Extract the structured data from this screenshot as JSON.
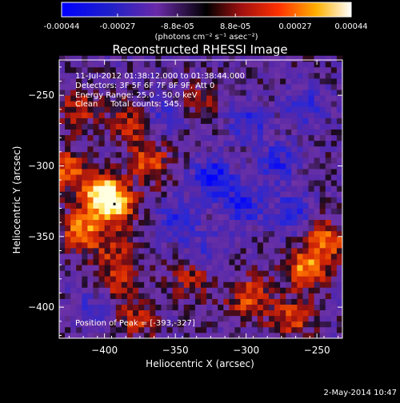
{
  "colorbar": {
    "tick_labels": [
      "-0.00044",
      "-0.00027",
      "-8.8e-05",
      "8.8e-05",
      "0.00027",
      "0.00044"
    ],
    "unit_label": "(photons cm⁻² s⁻¹ asec⁻²)"
  },
  "chart_data": {
    "type": "heatmap",
    "title": "Reconstructed RHESSI Image",
    "xlabel": "Heliocentric X (arcsec)",
    "ylabel": "Heliocentric Y (arcsec)",
    "xlim": [
      -432,
      -232
    ],
    "ylim": [
      -422,
      -225
    ],
    "xticks": [
      -400,
      -350,
      -300,
      -250
    ],
    "yticks": [
      -250,
      -300,
      -350,
      -400
    ],
    "xtick_labels": [
      "−400",
      "−350",
      "−300",
      "−250"
    ],
    "ytick_labels": [
      "−250",
      "−300",
      "−350",
      "−400"
    ],
    "value_range": [
      -0.00044,
      0.00044
    ],
    "colormap": "blue-purple-black-red-orange-yellow-white",
    "grid": false,
    "annotations": [
      "11-Jul-2012 01:38:12.000 to 01:38:44.000",
      "Detectors: 3F 5F 6F 7F 8F 9F, Att 0",
      "Energy Range: 25.0 - 50.0 keV",
      "Clean     Total counts: 545."
    ],
    "peak_label": "Position of Peak = [-393,-327]",
    "peak_position": [
      -393,
      -327
    ],
    "features": [
      {
        "x": -405,
        "y": -320,
        "level": 0.95
      },
      {
        "x": -395,
        "y": -330,
        "level": 0.9
      },
      {
        "x": -418,
        "y": -348,
        "level": 0.8
      },
      {
        "x": -428,
        "y": -305,
        "level": 0.6
      },
      {
        "x": -370,
        "y": -300,
        "level": 0.6
      },
      {
        "x": -383,
        "y": -272,
        "level": 0.5
      },
      {
        "x": -420,
        "y": -262,
        "level": 0.45
      },
      {
        "x": -335,
        "y": -255,
        "level": 0.3
      },
      {
        "x": -260,
        "y": -375,
        "level": 0.8
      },
      {
        "x": -245,
        "y": -355,
        "level": 0.7
      },
      {
        "x": -300,
        "y": -395,
        "level": 0.65
      },
      {
        "x": -340,
        "y": -380,
        "level": 0.5
      },
      {
        "x": -395,
        "y": -385,
        "level": 0.45
      },
      {
        "x": -270,
        "y": -410,
        "level": 0.6
      },
      {
        "x": -380,
        "y": -412,
        "level": 0.45
      },
      {
        "x": -395,
        "y": -362,
        "level": 0.4
      },
      {
        "x": -325,
        "y": -310,
        "level": -0.7
      },
      {
        "x": -305,
        "y": -330,
        "level": -0.55
      },
      {
        "x": -280,
        "y": -300,
        "level": -0.5
      },
      {
        "x": -350,
        "y": -340,
        "level": -0.5
      },
      {
        "x": -260,
        "y": -260,
        "level": -0.45
      },
      {
        "x": -300,
        "y": -270,
        "level": -0.45
      },
      {
        "x": -360,
        "y": -265,
        "level": -0.35
      },
      {
        "x": -270,
        "y": -335,
        "level": -0.45
      },
      {
        "x": -410,
        "y": -400,
        "level": -0.3
      },
      {
        "x": -330,
        "y": -365,
        "level": -0.4
      }
    ]
  },
  "footer": {
    "date": "2-May-2014 10:47"
  }
}
